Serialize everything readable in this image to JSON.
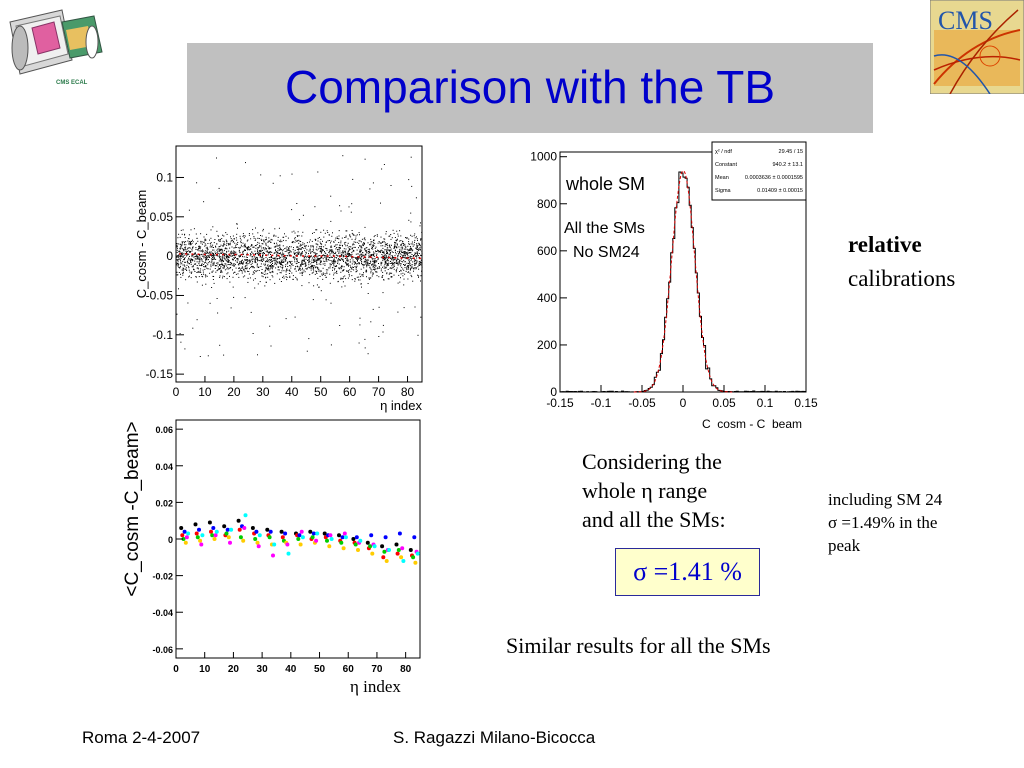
{
  "title": "Comparison with the TB",
  "logo_left": {
    "label": "CMS ECAL"
  },
  "logo_right": {
    "label": "CMS"
  },
  "chart_data": [
    {
      "type": "scatter",
      "xlabel": "η index",
      "ylabel": "C_cosm - C_beam",
      "xlim": [
        0,
        85
      ],
      "ylim": [
        -0.16,
        0.14
      ],
      "xticks": [
        "0",
        "10",
        "20",
        "30",
        "40",
        "50",
        "60",
        "70",
        "80"
      ],
      "yticks": [
        "-0.15",
        "-0.1",
        "-0.05",
        "0",
        "0.05",
        "0.1"
      ],
      "trend_y": [
        0.004,
        0.003,
        0.003,
        0.002,
        0.001,
        0.001,
        0.0,
        -0.001,
        -0.002
      ],
      "spread_sigma": 0.014,
      "grid": false
    },
    {
      "type": "bar",
      "subtype": "histogram",
      "xlabel": "C_cosm - C_beam",
      "xlim": [
        -0.15,
        0.15
      ],
      "ylim": [
        0,
        1020
      ],
      "xticks": [
        "-0.15",
        "-0.1",
        "-0.05",
        "0",
        "0.05",
        "0.1",
        "0.15"
      ],
      "yticks": [
        "0",
        "200",
        "400",
        "600",
        "800",
        "1000"
      ],
      "fit": {
        "constant": 940.2,
        "mean": 0.0003636,
        "sigma": 0.01409
      },
      "stats": {
        "rows": [
          {
            "label": "χ² / ndf",
            "value": "29.45 / 15"
          },
          {
            "label": "Constant",
            "value": "940.2 ± 13.1"
          },
          {
            "label": "Mean",
            "value": "0.0003636 ± 0.0001595"
          },
          {
            "label": "Sigma",
            "value": "0.01409 ± 0.00015"
          }
        ]
      },
      "annotations": {
        "line1": "whole SM",
        "line2": "All the SMs",
        "line3": "No SM24"
      }
    },
    {
      "type": "scatter",
      "xlabel": "η index",
      "ylabel": "<C_cosm -C_beam>",
      "xlim": [
        0,
        85
      ],
      "ylim": [
        -0.065,
        0.065
      ],
      "xticks": [
        "0",
        "10",
        "20",
        "30",
        "40",
        "50",
        "60",
        "70",
        "80"
      ],
      "yticks": [
        "-0.06",
        "-0.04",
        "-0.02",
        "0",
        "0.02",
        "0.04",
        "0.06"
      ],
      "x": [
        3,
        8,
        13,
        18,
        23,
        28,
        33,
        38,
        43,
        48,
        53,
        58,
        63,
        68,
        73,
        78,
        83
      ],
      "series": [
        {
          "color": "#000000",
          "values": [
            0.006,
            0.008,
            0.009,
            0.007,
            0.01,
            0.006,
            0.005,
            0.004,
            0.003,
            0.004,
            0.003,
            0.002,
            0.0,
            -0.002,
            -0.004,
            -0.003,
            -0.006
          ]
        },
        {
          "color": "#ff0000",
          "values": [
            0.002,
            0.003,
            0.004,
            0.002,
            0.005,
            0.003,
            0.002,
            0.001,
            0.002,
            0.0,
            0.001,
            -0.001,
            -0.002,
            -0.005,
            -0.01,
            -0.008,
            -0.009
          ]
        },
        {
          "color": "#00cc00",
          "values": [
            0.0,
            0.001,
            0.002,
            0.003,
            0.001,
            0.0,
            0.001,
            -0.001,
            0.0,
            0.001,
            -0.001,
            -0.002,
            -0.003,
            -0.004,
            -0.007,
            -0.006,
            -0.01
          ]
        },
        {
          "color": "#0000ff",
          "values": [
            0.004,
            0.005,
            0.006,
            0.005,
            0.007,
            0.004,
            0.004,
            0.003,
            0.002,
            0.003,
            0.002,
            0.001,
            0.001,
            0.002,
            0.001,
            0.003,
            0.001
          ]
        },
        {
          "color": "#ffcc00",
          "values": [
            -0.002,
            -0.001,
            0.0,
            0.001,
            -0.001,
            -0.002,
            -0.003,
            -0.002,
            -0.003,
            -0.002,
            -0.004,
            -0.005,
            -0.006,
            -0.008,
            -0.012,
            -0.01,
            -0.013
          ]
        },
        {
          "color": "#ff00ff",
          "values": [
            0.001,
            -0.003,
            0.002,
            -0.002,
            0.006,
            -0.004,
            -0.009,
            -0.003,
            0.004,
            -0.001,
            0.002,
            0.003,
            -0.002,
            -0.003,
            -0.006,
            -0.005,
            -0.007
          ]
        },
        {
          "color": "#00ffff",
          "values": [
            0.003,
            0.002,
            0.004,
            0.005,
            0.013,
            0.002,
            -0.003,
            -0.008,
            0.001,
            0.003,
            0.0,
            0.001,
            -0.001,
            -0.004,
            -0.006,
            -0.012,
            -0.008
          ]
        }
      ],
      "grid": false
    }
  ],
  "labels": {
    "bottom_xlabel": "η index",
    "relative": "relative",
    "calibrations": "calibrations",
    "considering": [
      "Considering the",
      "whole η range",
      "and all the SMs:"
    ],
    "sigma_main": "σ =1.41 %",
    "including": [
      "including SM 24",
      "σ =1.49% in the",
      "peak"
    ],
    "similar": "Similar results for all the SMs"
  },
  "footer": {
    "left": "Roma 2-4-2007",
    "center": "S. Ragazzi Milano-Bicocca"
  }
}
